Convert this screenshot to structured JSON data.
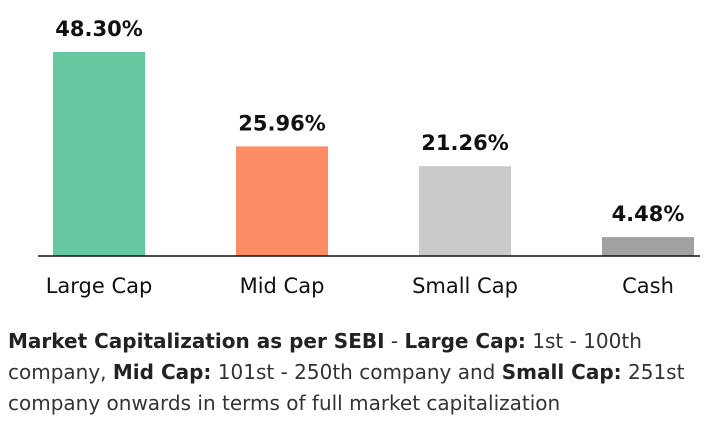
{
  "chart_data": {
    "type": "bar",
    "categories": [
      "Large Cap",
      "Mid Cap",
      "Small Cap",
      "Cash"
    ],
    "values": [
      48.3,
      25.96,
      21.26,
      4.48
    ],
    "value_labels": [
      "48.30%",
      "25.96%",
      "21.26%",
      "4.48%"
    ],
    "colors": [
      "#66c8a0",
      "#fb8c63",
      "#cacaca",
      "#a1a1a1"
    ],
    "ylim": [
      0,
      48.3
    ],
    "title": "",
    "xlabel": "",
    "ylabel": "",
    "grid": false
  },
  "note": {
    "bold_1": "Market Capitalization as per SEBI",
    "text_1": " - ",
    "bold_2": "Large Cap:",
    "text_2": " 1st - 100th company, ",
    "bold_3": "Mid Cap:",
    "text_3": " 101st - 250th company and ",
    "bold_4": "Small Cap:",
    "text_4": " 251st company onwards in terms of full market capitalization"
  }
}
